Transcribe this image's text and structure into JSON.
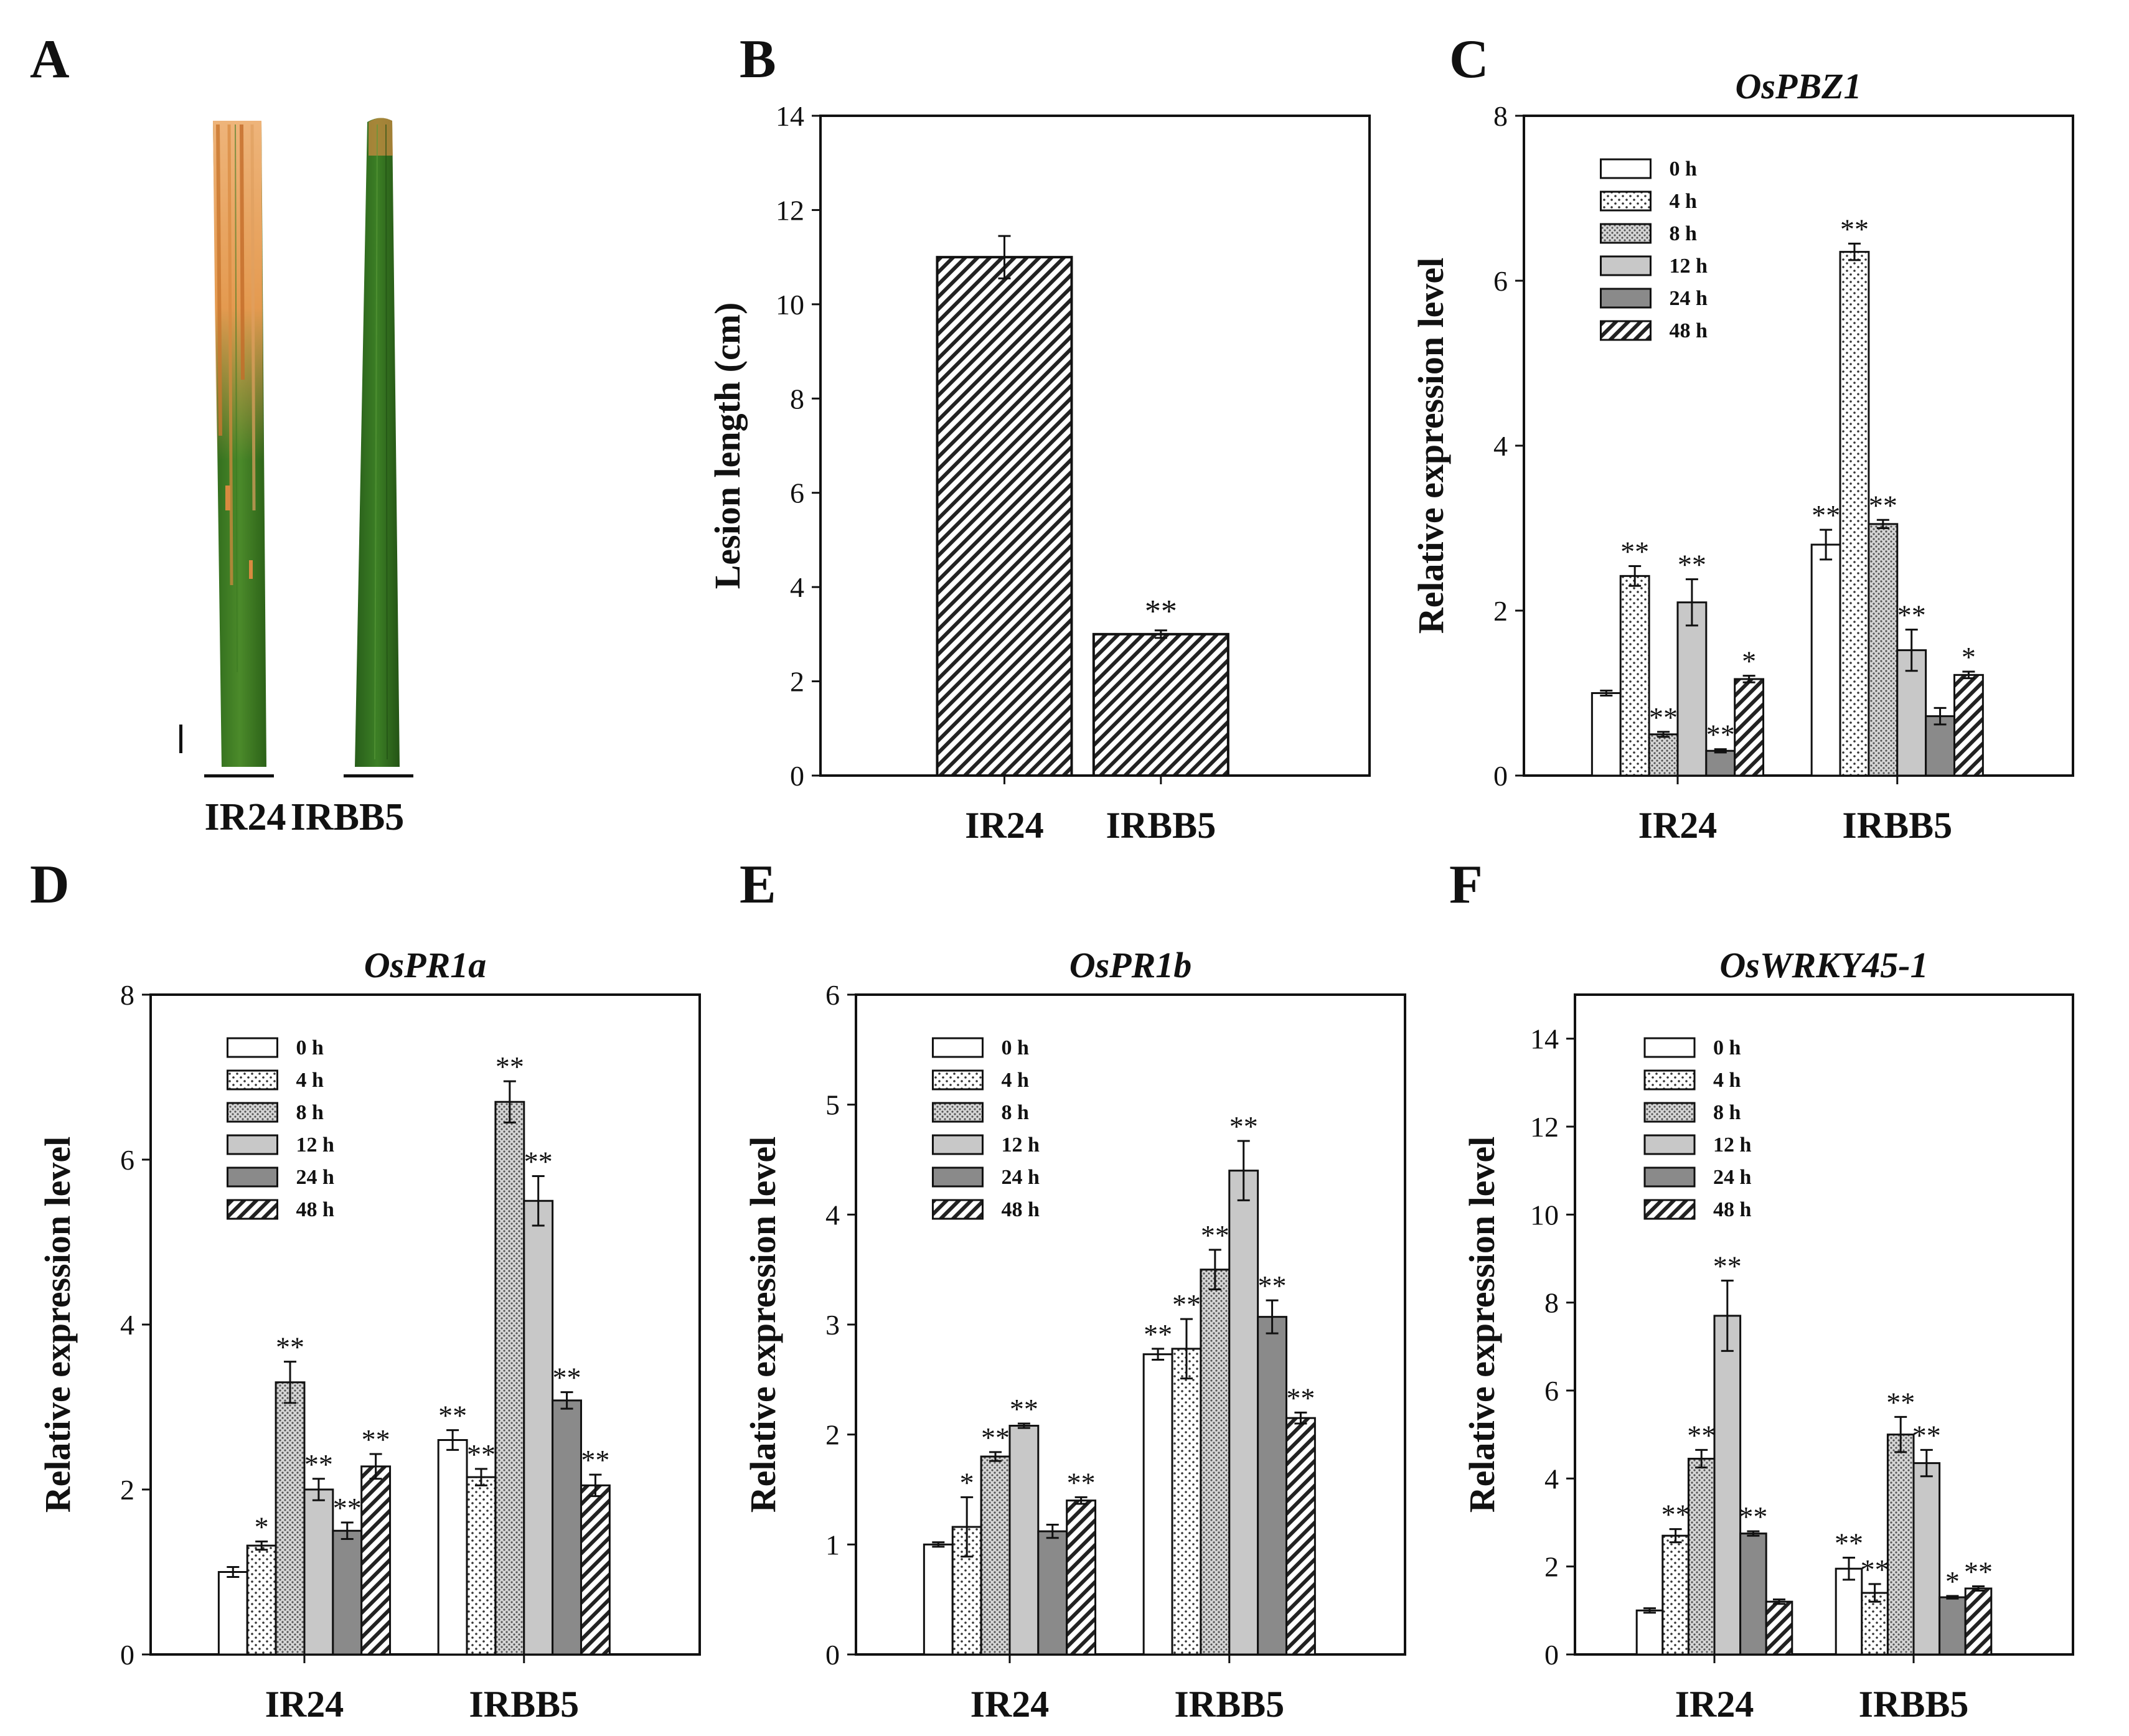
{
  "panels": {
    "A": "A",
    "B": "B",
    "C": "C",
    "D": "D",
    "E": "E",
    "F": "F"
  },
  "leaf_panel": {
    "labels": [
      "IR24",
      "IRBB5"
    ],
    "leaf_colors": {
      "healthy": "#3f7a22",
      "lesion": "#e6a25c"
    }
  },
  "legend_labels": [
    "0 h",
    "4 h",
    "8 h",
    "12 h",
    "24 h",
    "48 h"
  ],
  "chart_data": [
    {
      "id": "B",
      "type": "bar",
      "categories": [
        "IR24",
        "IRBB5"
      ],
      "values": [
        11.0,
        3.0
      ],
      "errors": [
        0.45,
        0.08
      ],
      "stars": [
        "",
        "**"
      ],
      "ylabel": "Lesion length (cm)",
      "ylim": [
        0,
        14
      ],
      "yticks": [
        0,
        2,
        4,
        6,
        8,
        10,
        12,
        14
      ],
      "grid": false
    },
    {
      "id": "C",
      "type": "bar",
      "title": "OsPBZ1",
      "ylabel": "Relative  expression  level",
      "categories": [
        "IR24",
        "IRBB5"
      ],
      "ylim": [
        0,
        8
      ],
      "yticks": [
        0,
        2,
        4,
        6,
        8
      ],
      "legend_position": "top-left",
      "series": [
        {
          "name": "0 h",
          "values": [
            1.0,
            2.8
          ],
          "errors": [
            0.03,
            0.18
          ],
          "stars": [
            "",
            "**"
          ]
        },
        {
          "name": "4 h",
          "values": [
            2.42,
            6.35
          ],
          "errors": [
            0.12,
            0.1
          ],
          "stars": [
            "**",
            "**"
          ]
        },
        {
          "name": "8 h",
          "values": [
            0.5,
            3.05
          ],
          "errors": [
            0.03,
            0.05
          ],
          "stars": [
            "**",
            "**"
          ]
        },
        {
          "name": "12 h",
          "values": [
            2.1,
            1.52
          ],
          "errors": [
            0.28,
            0.25
          ],
          "stars": [
            "**",
            "**"
          ]
        },
        {
          "name": "24 h",
          "values": [
            0.3,
            0.72
          ],
          "errors": [
            0.02,
            0.1
          ],
          "stars": [
            "**",
            ""
          ]
        },
        {
          "name": "48 h",
          "values": [
            1.17,
            1.22
          ],
          "errors": [
            0.04,
            0.04
          ],
          "stars": [
            "*",
            "*"
          ]
        }
      ]
    },
    {
      "id": "D",
      "type": "bar",
      "title": "OsPR1a",
      "ylabel": "Relative  expression  level",
      "categories": [
        "IR24",
        "IRBB5"
      ],
      "ylim": [
        0,
        8
      ],
      "yticks": [
        0,
        2,
        4,
        6,
        8
      ],
      "legend_position": "top-left",
      "series": [
        {
          "name": "0 h",
          "values": [
            1.0,
            2.6
          ],
          "errors": [
            0.06,
            0.12
          ],
          "stars": [
            "",
            "**"
          ]
        },
        {
          "name": "4 h",
          "values": [
            1.32,
            2.15
          ],
          "errors": [
            0.05,
            0.1
          ],
          "stars": [
            "*",
            "**"
          ]
        },
        {
          "name": "8 h",
          "values": [
            3.3,
            6.7
          ],
          "errors": [
            0.25,
            0.25
          ],
          "stars": [
            "**",
            "**"
          ]
        },
        {
          "name": "12 h",
          "values": [
            2.0,
            5.5
          ],
          "errors": [
            0.13,
            0.3
          ],
          "stars": [
            "**",
            "**"
          ]
        },
        {
          "name": "24 h",
          "values": [
            1.5,
            3.08
          ],
          "errors": [
            0.1,
            0.1
          ],
          "stars": [
            "**",
            "**"
          ]
        },
        {
          "name": "48 h",
          "values": [
            2.28,
            2.05
          ],
          "errors": [
            0.15,
            0.13
          ],
          "stars": [
            "**",
            "**"
          ]
        }
      ]
    },
    {
      "id": "E",
      "type": "bar",
      "title": "OsPR1b",
      "ylabel": "Relative  expression  level",
      "categories": [
        "IR24",
        "IRBB5"
      ],
      "ylim": [
        0,
        6
      ],
      "yticks": [
        0,
        1,
        2,
        3,
        4,
        5,
        6
      ],
      "legend_position": "top-left",
      "series": [
        {
          "name": "0 h",
          "values": [
            1.0,
            2.73
          ],
          "errors": [
            0.02,
            0.05
          ],
          "stars": [
            "",
            "**"
          ]
        },
        {
          "name": "4 h",
          "values": [
            1.16,
            2.78
          ],
          "errors": [
            0.27,
            0.27
          ],
          "stars": [
            "*",
            "**"
          ]
        },
        {
          "name": "8 h",
          "values": [
            1.8,
            3.5
          ],
          "errors": [
            0.04,
            0.18
          ],
          "stars": [
            "**",
            "**"
          ]
        },
        {
          "name": "12 h",
          "values": [
            2.08,
            4.4
          ],
          "errors": [
            0.02,
            0.27
          ],
          "stars": [
            "**",
            "**"
          ]
        },
        {
          "name": "24 h",
          "values": [
            1.12,
            3.07
          ],
          "errors": [
            0.06,
            0.15
          ],
          "stars": [
            "",
            "**"
          ]
        },
        {
          "name": "48 h",
          "values": [
            1.4,
            2.15
          ],
          "errors": [
            0.03,
            0.05
          ],
          "stars": [
            "**",
            "**"
          ]
        }
      ]
    },
    {
      "id": "F",
      "type": "bar",
      "title": "OsWRKY45-1",
      "ylabel": "Relative  expression  level",
      "categories": [
        "IR24",
        "IRBB5"
      ],
      "ylim": [
        0,
        15
      ],
      "yticks": [
        0,
        2,
        4,
        6,
        8,
        10,
        12,
        14
      ],
      "legend_position": "top-left",
      "series": [
        {
          "name": "0 h",
          "values": [
            1.0,
            1.95
          ],
          "errors": [
            0.05,
            0.25
          ],
          "stars": [
            "",
            "**"
          ]
        },
        {
          "name": "4 h",
          "values": [
            2.7,
            1.4
          ],
          "errors": [
            0.15,
            0.2
          ],
          "stars": [
            "**",
            "**"
          ]
        },
        {
          "name": "8 h",
          "values": [
            4.45,
            5.0
          ],
          "errors": [
            0.2,
            0.4
          ],
          "stars": [
            "**",
            "**"
          ]
        },
        {
          "name": "12 h",
          "values": [
            7.7,
            4.35
          ],
          "errors": [
            0.8,
            0.3
          ],
          "stars": [
            "**",
            "**"
          ]
        },
        {
          "name": "24 h",
          "values": [
            2.75,
            1.3
          ],
          "errors": [
            0.05,
            0.03
          ],
          "stars": [
            "**",
            "*"
          ]
        },
        {
          "name": "48 h",
          "values": [
            1.2,
            1.5
          ],
          "errors": [
            0.05,
            0.05
          ],
          "stars": [
            "",
            "**"
          ]
        }
      ]
    }
  ]
}
